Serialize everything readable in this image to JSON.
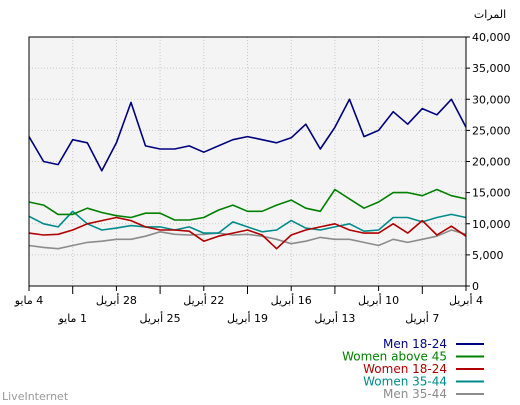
{
  "chart_data": {
    "type": "line",
    "ylabel": "المرات",
    "ylim": [
      0,
      40000
    ],
    "yticks": [
      0,
      5000,
      10000,
      15000,
      20000,
      25000,
      30000,
      35000,
      40000
    ],
    "ytick_labels": [
      "0",
      "5,000",
      "10,000",
      "15,000",
      "20,000",
      "25,000",
      "30,000",
      "35,000",
      "40,000"
    ],
    "x_days": 31,
    "x_direction": "right-to-left",
    "x_ticks_row1": [
      {
        "index": 0,
        "label": "4 أبريل"
      },
      {
        "index": 6,
        "label": "10 أبريل"
      },
      {
        "index": 12,
        "label": "16 أبريل"
      },
      {
        "index": 18,
        "label": "22 أبريل"
      },
      {
        "index": 24,
        "label": "28 أبريل"
      },
      {
        "index": 30,
        "label": "4 مايو"
      }
    ],
    "x_ticks_row2": [
      {
        "index": 3,
        "label": "7 أبريل"
      },
      {
        "index": 9,
        "label": "13 أبريل"
      },
      {
        "index": 15,
        "label": "19 أبريل"
      },
      {
        "index": 21,
        "label": "25 أبريل"
      },
      {
        "index": 27,
        "label": "1 مايو"
      }
    ],
    "grid": true,
    "legend_position": "bottom-right",
    "series": [
      {
        "name": "Men 18-24",
        "color": "#00007f",
        "values": [
          25500,
          30000,
          27500,
          28500,
          26000,
          28000,
          25000,
          24000,
          30000,
          25500,
          22000,
          26000,
          23800,
          23000,
          23500,
          24000,
          23500,
          22500,
          21500,
          22500,
          22000,
          22000,
          22500,
          29500,
          23000,
          18500,
          23000,
          23500,
          19500,
          20000,
          24000
        ]
      },
      {
        "name": "Women above 45",
        "color": "#008000",
        "values": [
          14000,
          14500,
          15500,
          14500,
          15000,
          15000,
          13500,
          12500,
          14000,
          15500,
          12000,
          12500,
          13800,
          13000,
          12000,
          12000,
          13000,
          12200,
          11000,
          10600,
          10600,
          11700,
          11700,
          11000,
          11300,
          11800,
          12500,
          11500,
          11500,
          13000,
          13500
        ]
      },
      {
        "name": "Women 18-24",
        "color": "#b00000",
        "values": [
          8000,
          9600,
          8200,
          10500,
          8500,
          10000,
          8500,
          8500,
          9000,
          10000,
          9500,
          9000,
          8200,
          6000,
          8200,
          9000,
          8500,
          8000,
          7200,
          8800,
          9000,
          9000,
          9500,
          10500,
          11000,
          10500,
          10000,
          9000,
          8300,
          8200,
          8500
        ]
      },
      {
        "name": "Women 35-44",
        "color": "#008b8b",
        "values": [
          11000,
          11500,
          11000,
          10300,
          11000,
          11000,
          9000,
          8800,
          10000,
          9500,
          9000,
          9300,
          10500,
          9000,
          8700,
          9500,
          10300,
          8500,
          8500,
          9500,
          9000,
          9500,
          9500,
          9700,
          9300,
          9000,
          10000,
          12000,
          9500,
          10000,
          11200
        ]
      },
      {
        "name": "Men 35-44",
        "color": "#8c8c8c",
        "values": [
          8300,
          9000,
          8000,
          7500,
          7000,
          7500,
          6500,
          7000,
          7500,
          7500,
          7800,
          7200,
          6800,
          7500,
          8000,
          8300,
          8200,
          8500,
          8300,
          8200,
          8300,
          8700,
          8000,
          7500,
          7500,
          7200,
          7000,
          6500,
          6000,
          6200,
          6500
        ]
      }
    ]
  },
  "footer": {
    "brand": "LiveInternet"
  }
}
